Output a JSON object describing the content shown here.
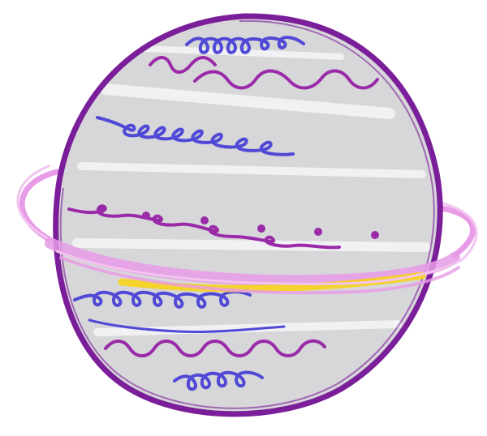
{
  "illustration": {
    "subject": "planet-with-ring",
    "style": "hand-drawn marker doodle",
    "colors": {
      "planet_fill": "#d7d7da",
      "planet_highlight": "#f4f4f6",
      "outline": "#7b1e9a",
      "ring_pink": "#e89be6",
      "ring_pink_light": "#f2c4ef",
      "ring_yellow": "#f7d31a",
      "swirl_blue": "#4f49d6",
      "swirl_purple": "#9a2aa8",
      "background": "#ffffff"
    }
  }
}
